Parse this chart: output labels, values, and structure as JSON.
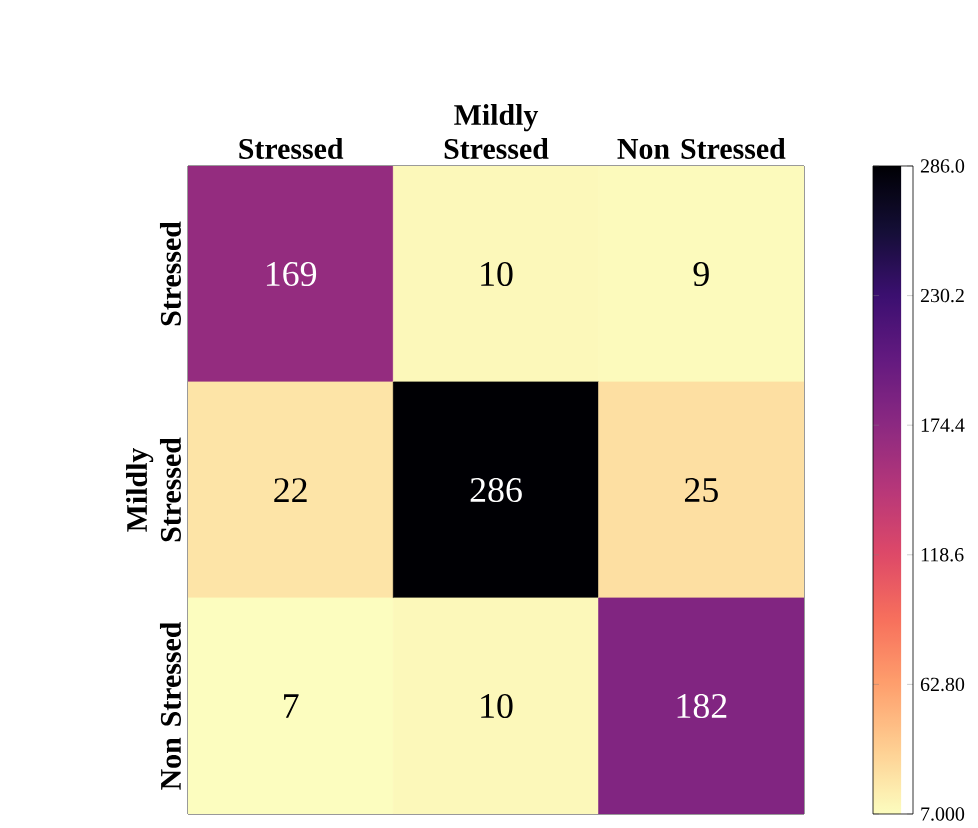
{
  "chart_data": {
    "type": "heatmap",
    "categories": [
      "Stressed",
      "Mildly Stressed",
      "Non Stressed"
    ],
    "y_categories": [
      "Stressed",
      "Mildly Stressed",
      "Non Stressed"
    ],
    "cells": [
      [
        169,
        10,
        9
      ],
      [
        22,
        286,
        25
      ],
      [
        7,
        10,
        182
      ]
    ],
    "clim": [
      7,
      286
    ],
    "cticks": [
      {
        "value": 7,
        "label": "7.000"
      },
      {
        "value": 62.8,
        "label": "62.80"
      },
      {
        "value": 118.6,
        "label": "118.6"
      },
      {
        "value": 174.4,
        "label": "174.4"
      },
      {
        "value": 230.2,
        "label": "230.2"
      },
      {
        "value": 286,
        "label": "286.0"
      }
    ],
    "data_labels": true
  }
}
